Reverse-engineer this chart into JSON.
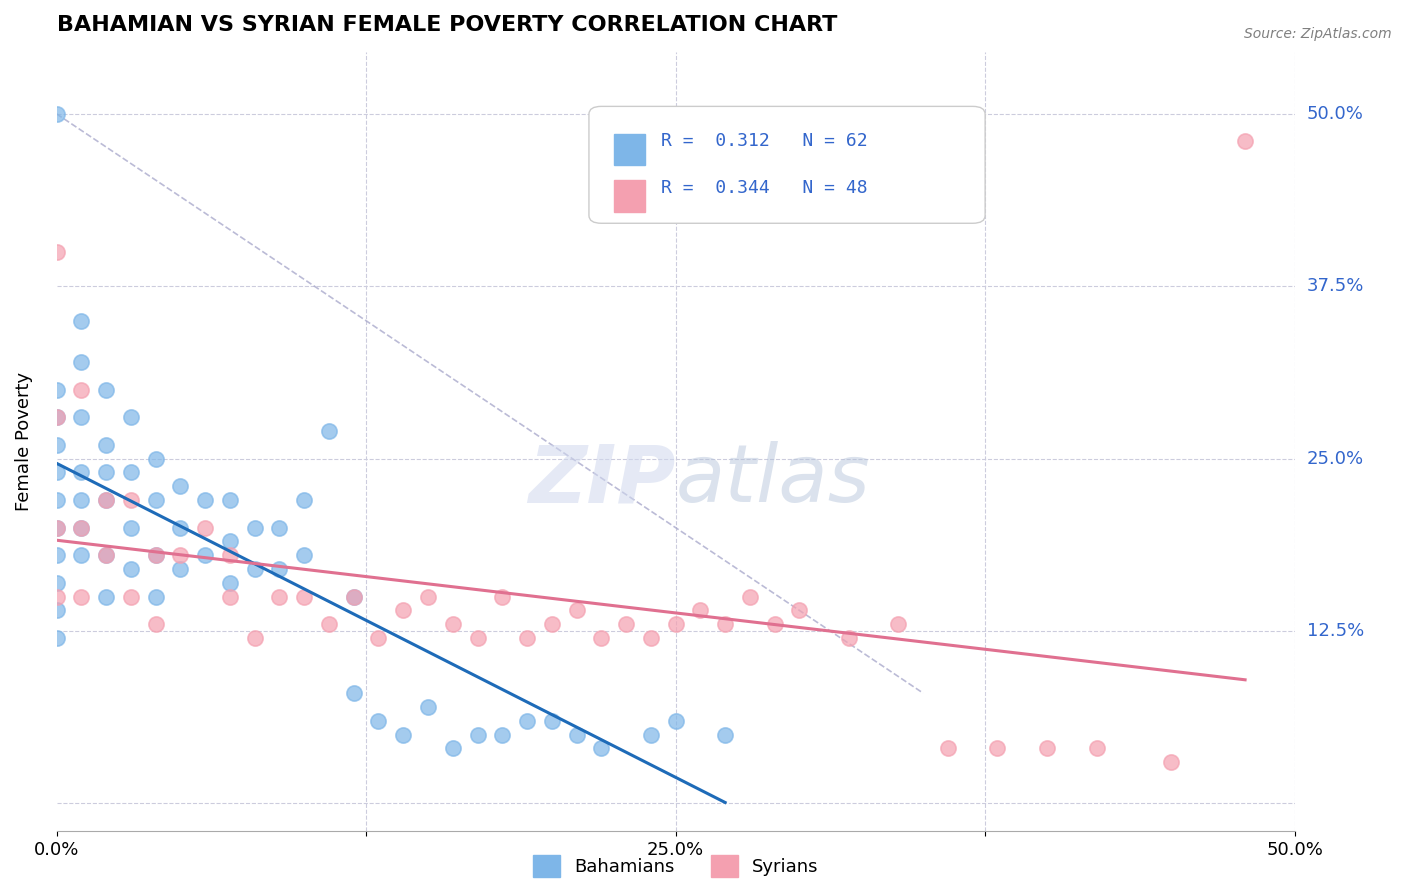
{
  "title": "BAHAMIAN VS SYRIAN FEMALE POVERTY CORRELATION CHART",
  "source": "Source: ZipAtlas.com",
  "xlabel": "",
  "ylabel": "Female Poverty",
  "xlim": [
    0.0,
    0.5
  ],
  "ylim": [
    -0.02,
    0.545
  ],
  "xticks": [
    0.0,
    0.125,
    0.25,
    0.375,
    0.5
  ],
  "xtick_labels": [
    "0.0%",
    "",
    "25.0%",
    "",
    "50.0%"
  ],
  "ytick_vals": [
    0.0,
    0.125,
    0.25,
    0.375,
    0.5
  ],
  "ytick_labels": [
    "",
    "12.5%",
    "25.0%",
    "37.5%",
    "50.0%"
  ],
  "R_bahamian": 0.312,
  "N_bahamian": 62,
  "R_syrian": 0.344,
  "N_syrian": 48,
  "blue_color": "#7EB6E8",
  "pink_color": "#F4A0B0",
  "line_blue": "#1E6BB8",
  "line_pink": "#E07090",
  "line_dash": "#AAAACC",
  "bahamian_x": [
    0.0,
    0.0,
    0.0,
    0.0,
    0.0,
    0.0,
    0.0,
    0.0,
    0.0,
    0.0,
    0.0,
    0.01,
    0.01,
    0.01,
    0.01,
    0.01,
    0.01,
    0.01,
    0.02,
    0.02,
    0.02,
    0.02,
    0.02,
    0.02,
    0.03,
    0.03,
    0.03,
    0.03,
    0.04,
    0.04,
    0.04,
    0.04,
    0.05,
    0.05,
    0.05,
    0.06,
    0.06,
    0.07,
    0.07,
    0.07,
    0.08,
    0.08,
    0.09,
    0.09,
    0.1,
    0.1,
    0.11,
    0.12,
    0.12,
    0.13,
    0.14,
    0.15,
    0.16,
    0.17,
    0.18,
    0.19,
    0.2,
    0.21,
    0.22,
    0.24,
    0.25,
    0.27
  ],
  "bahamian_y": [
    0.5,
    0.3,
    0.28,
    0.26,
    0.24,
    0.22,
    0.2,
    0.18,
    0.16,
    0.14,
    0.12,
    0.35,
    0.32,
    0.28,
    0.24,
    0.22,
    0.2,
    0.18,
    0.3,
    0.26,
    0.24,
    0.22,
    0.18,
    0.15,
    0.28,
    0.24,
    0.2,
    0.17,
    0.25,
    0.22,
    0.18,
    0.15,
    0.23,
    0.2,
    0.17,
    0.22,
    0.18,
    0.22,
    0.19,
    0.16,
    0.2,
    0.17,
    0.2,
    0.17,
    0.22,
    0.18,
    0.27,
    0.15,
    0.08,
    0.06,
    0.05,
    0.07,
    0.04,
    0.05,
    0.05,
    0.06,
    0.06,
    0.05,
    0.04,
    0.05,
    0.06,
    0.05
  ],
  "syrian_x": [
    0.0,
    0.0,
    0.0,
    0.0,
    0.01,
    0.01,
    0.01,
    0.02,
    0.02,
    0.03,
    0.03,
    0.04,
    0.04,
    0.05,
    0.06,
    0.07,
    0.07,
    0.08,
    0.09,
    0.1,
    0.11,
    0.12,
    0.13,
    0.14,
    0.15,
    0.16,
    0.17,
    0.18,
    0.19,
    0.2,
    0.21,
    0.22,
    0.23,
    0.24,
    0.25,
    0.26,
    0.27,
    0.28,
    0.29,
    0.3,
    0.32,
    0.34,
    0.36,
    0.38,
    0.4,
    0.42,
    0.45,
    0.48
  ],
  "syrian_y": [
    0.4,
    0.28,
    0.2,
    0.15,
    0.3,
    0.2,
    0.15,
    0.22,
    0.18,
    0.22,
    0.15,
    0.18,
    0.13,
    0.18,
    0.2,
    0.15,
    0.18,
    0.12,
    0.15,
    0.15,
    0.13,
    0.15,
    0.12,
    0.14,
    0.15,
    0.13,
    0.12,
    0.15,
    0.12,
    0.13,
    0.14,
    0.12,
    0.13,
    0.12,
    0.13,
    0.14,
    0.13,
    0.15,
    0.13,
    0.14,
    0.12,
    0.13,
    0.04,
    0.04,
    0.04,
    0.04,
    0.03,
    0.48
  ]
}
